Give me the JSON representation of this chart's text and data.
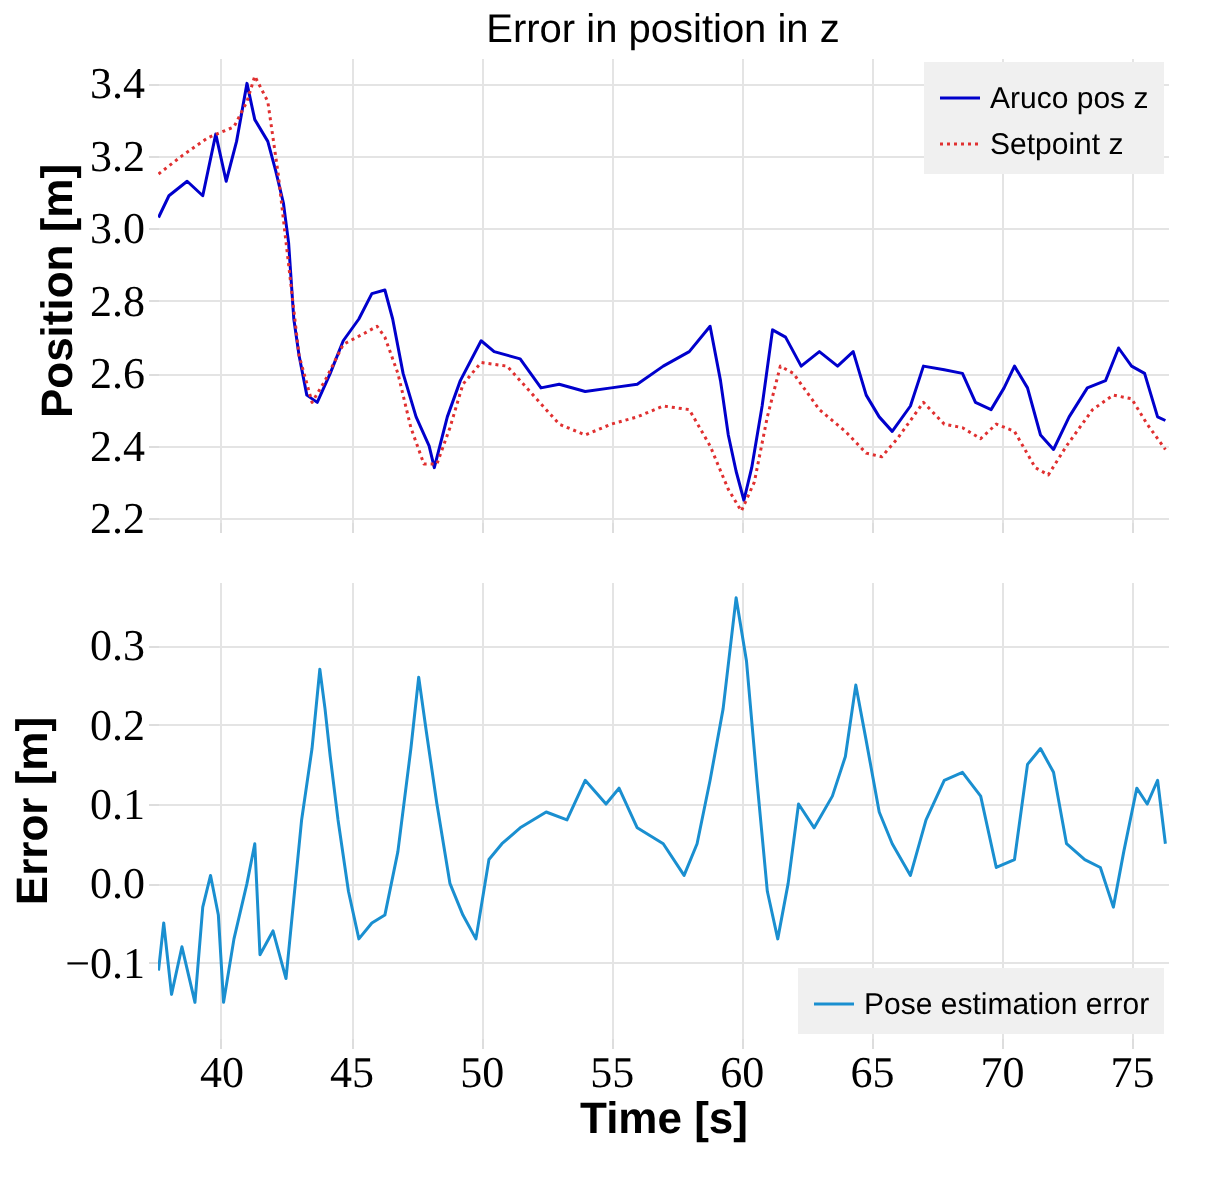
{
  "chart_data": [
    {
      "type": "line",
      "title": "Error in position in z",
      "ylabel": "Position [m]",
      "xlim": [
        37.58,
        76.4
      ],
      "xticks": [
        40,
        45,
        50,
        55,
        60,
        65,
        70,
        75
      ],
      "ylim": [
        2.19,
        3.47
      ],
      "yticks": [
        2.2,
        2.4,
        2.6,
        2.8,
        {
          "value": 3.0,
          "label": "3.0"
        },
        3.2,
        3.4
      ],
      "grid": true,
      "legend": "top right",
      "tick_labels": "y",
      "series": [
        {
          "name": "Aruco pos z",
          "color": "#0000cc",
          "line_style": "solid",
          "x": [
            37.6,
            38.0,
            38.7,
            39.3,
            39.8,
            40.2,
            40.6,
            41.0,
            41.3,
            41.8,
            42.1,
            42.4,
            42.6,
            42.8,
            43.0,
            43.3,
            43.7,
            44.2,
            44.7,
            45.3,
            45.8,
            46.3,
            46.6,
            47.0,
            47.5,
            48.0,
            48.2,
            48.7,
            49.2,
            50.0,
            50.5,
            51.5,
            52.3,
            53.0,
            54.0,
            55.0,
            56.0,
            57.0,
            58.0,
            58.8,
            59.2,
            59.5,
            59.8,
            60.1,
            60.4,
            60.8,
            61.2,
            61.7,
            62.3,
            63.0,
            63.7,
            64.3,
            64.8,
            65.3,
            65.8,
            66.5,
            67.0,
            67.8,
            68.5,
            69.0,
            69.6,
            70.1,
            70.5,
            71.0,
            71.5,
            72.0,
            72.6,
            73.3,
            74.0,
            74.5,
            75.0,
            75.5,
            76.0,
            76.3
          ],
          "values": [
            3.03,
            3.09,
            3.13,
            3.09,
            3.26,
            3.13,
            3.24,
            3.4,
            3.3,
            3.24,
            3.16,
            3.07,
            2.96,
            2.75,
            2.65,
            2.54,
            2.52,
            2.6,
            2.69,
            2.75,
            2.82,
            2.83,
            2.75,
            2.6,
            2.48,
            2.4,
            2.34,
            2.48,
            2.58,
            2.69,
            2.66,
            2.64,
            2.56,
            2.57,
            2.55,
            2.56,
            2.57,
            2.62,
            2.66,
            2.73,
            2.58,
            2.43,
            2.33,
            2.25,
            2.34,
            2.51,
            2.72,
            2.7,
            2.62,
            2.66,
            2.62,
            2.66,
            2.54,
            2.48,
            2.44,
            2.51,
            2.62,
            2.61,
            2.6,
            2.52,
            2.5,
            2.56,
            2.62,
            2.56,
            2.43,
            2.39,
            2.48,
            2.56,
            2.58,
            2.67,
            2.62,
            2.6,
            2.48,
            2.47
          ]
        },
        {
          "name": "Setpoint z",
          "color": "#e03030",
          "line_style": "dotted",
          "x": [
            37.6,
            38.5,
            39.5,
            40.5,
            41.0,
            41.3,
            41.8,
            42.2,
            42.6,
            43.0,
            43.5,
            44.0,
            44.7,
            45.5,
            46.0,
            46.3,
            46.8,
            47.3,
            47.8,
            48.3,
            48.8,
            49.3,
            50.0,
            51.0,
            52.0,
            53.0,
            54.0,
            55.0,
            56.0,
            57.0,
            58.0,
            58.8,
            59.5,
            60.0,
            60.5,
            61.0,
            61.5,
            62.0,
            63.0,
            64.0,
            64.8,
            65.4,
            66.0,
            67.0,
            67.8,
            68.5,
            69.2,
            69.8,
            70.5,
            71.3,
            71.8,
            72.5,
            73.5,
            74.3,
            75.0,
            75.6,
            76.3
          ],
          "values": [
            3.15,
            3.2,
            3.25,
            3.28,
            3.35,
            3.42,
            3.35,
            3.15,
            2.9,
            2.65,
            2.52,
            2.58,
            2.68,
            2.71,
            2.73,
            2.7,
            2.6,
            2.45,
            2.35,
            2.35,
            2.45,
            2.57,
            2.63,
            2.62,
            2.54,
            2.46,
            2.43,
            2.46,
            2.48,
            2.51,
            2.5,
            2.4,
            2.28,
            2.22,
            2.3,
            2.48,
            2.62,
            2.6,
            2.5,
            2.44,
            2.38,
            2.37,
            2.42,
            2.52,
            2.46,
            2.45,
            2.42,
            2.46,
            2.44,
            2.34,
            2.32,
            2.4,
            2.5,
            2.54,
            2.53,
            2.46,
            2.39
          ]
        }
      ]
    },
    {
      "type": "line",
      "xlabel": "Time [s]",
      "ylabel": "Error [m]",
      "xlim": [
        37.58,
        76.4
      ],
      "xticks": [
        40,
        45,
        50,
        55,
        60,
        65,
        70,
        75
      ],
      "ylim": [
        -0.195,
        0.38
      ],
      "yticks": [
        {
          "value": -0.1,
          "label": "−0.1"
        },
        {
          "value": 0.0,
          "label": "0.0"
        },
        {
          "value": 0.1,
          "label": "0.1"
        },
        {
          "value": 0.2,
          "label": "0.2"
        },
        {
          "value": 0.3,
          "label": "0.3"
        }
      ],
      "grid": true,
      "legend": "bottom right",
      "series": [
        {
          "name": "Pose estimation error",
          "color": "#1a8fd0",
          "line_style": "solid",
          "x": [
            37.6,
            37.8,
            38.1,
            38.5,
            39.0,
            39.3,
            39.6,
            39.9,
            40.1,
            40.5,
            41.0,
            41.3,
            41.5,
            42.0,
            42.5,
            42.8,
            43.1,
            43.5,
            43.8,
            44.0,
            44.2,
            44.5,
            44.9,
            45.3,
            45.8,
            46.3,
            46.8,
            47.3,
            47.6,
            47.9,
            48.3,
            48.8,
            49.3,
            49.8,
            50.3,
            50.8,
            51.5,
            52.5,
            53.3,
            54.0,
            54.8,
            55.3,
            56.0,
            57.0,
            57.8,
            58.3,
            58.8,
            59.3,
            59.8,
            60.2,
            60.6,
            61.0,
            61.4,
            61.8,
            62.2,
            62.8,
            63.5,
            64.0,
            64.4,
            64.8,
            65.3,
            65.8,
            66.5,
            67.1,
            67.8,
            68.5,
            69.2,
            69.8,
            70.5,
            71.0,
            71.5,
            72.0,
            72.5,
            73.2,
            73.8,
            74.3,
            74.7,
            75.2,
            75.6,
            76.0,
            76.3
          ],
          "values": [
            -0.11,
            -0.05,
            -0.14,
            -0.08,
            -0.15,
            -0.03,
            0.01,
            -0.04,
            -0.15,
            -0.07,
            0.0,
            0.05,
            -0.09,
            -0.06,
            -0.12,
            -0.02,
            0.08,
            0.17,
            0.27,
            0.22,
            0.16,
            0.08,
            -0.01,
            -0.07,
            -0.05,
            -0.04,
            0.04,
            0.17,
            0.26,
            0.19,
            0.1,
            0.0,
            -0.04,
            -0.07,
            0.03,
            0.05,
            0.07,
            0.09,
            0.08,
            0.13,
            0.1,
            0.12,
            0.07,
            0.05,
            0.01,
            0.05,
            0.13,
            0.22,
            0.36,
            0.28,
            0.13,
            -0.01,
            -0.07,
            0.0,
            0.1,
            0.07,
            0.11,
            0.16,
            0.25,
            0.18,
            0.09,
            0.05,
            0.01,
            0.08,
            0.13,
            0.14,
            0.11,
            0.02,
            0.03,
            0.15,
            0.17,
            0.14,
            0.05,
            0.03,
            0.02,
            -0.03,
            0.04,
            0.12,
            0.1,
            0.13,
            0.05
          ]
        }
      ]
    }
  ]
}
